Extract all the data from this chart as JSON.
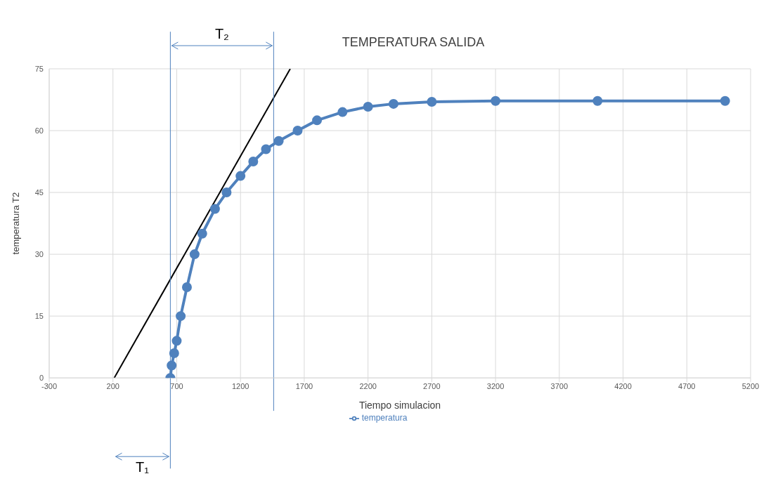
{
  "chart_data": {
    "type": "line",
    "title": "TEMPERATURA SALIDA",
    "xlabel": "Tiempo simulacion",
    "ylabel": "temperatura T2",
    "xlim": [
      -300,
      5200
    ],
    "xticks": [
      -300,
      200,
      700,
      1200,
      1700,
      2200,
      2700,
      3200,
      3700,
      4200,
      4700,
      5200
    ],
    "ylim": [
      0,
      75
    ],
    "yticks": [
      0,
      15,
      30,
      45,
      60,
      75
    ],
    "grid": true,
    "legend": "bottom",
    "series": [
      {
        "name": "temperatura",
        "color": "#4f81bd",
        "marker": "circle",
        "x": [
          650,
          660,
          680,
          700,
          731,
          780,
          840,
          900,
          1000,
          1091,
          1200,
          1300,
          1400,
          1500,
          1648,
          1800,
          2000,
          2200,
          2400,
          2700,
          3200,
          4000,
          5000
        ],
        "values": [
          0,
          3,
          6,
          9,
          15,
          22,
          30,
          35,
          41,
          45,
          49,
          52.5,
          55.5,
          57.5,
          60,
          62.5,
          64.5,
          65.8,
          66.5,
          67,
          67.2,
          67.2,
          67.2
        ]
      },
      {
        "type": "line",
        "color": "#000000",
        "marker": "none",
        "x": [
          210,
          1590
        ],
        "values": [
          0,
          75
        ]
      }
    ],
    "ref_lines": [
      {
        "axis": "x",
        "value": 650,
        "color": "#4f81bd"
      },
      {
        "axis": "x",
        "value": 1460,
        "color": "#4f81bd"
      }
    ],
    "annotations": [
      "T₂",
      "T₁"
    ]
  }
}
